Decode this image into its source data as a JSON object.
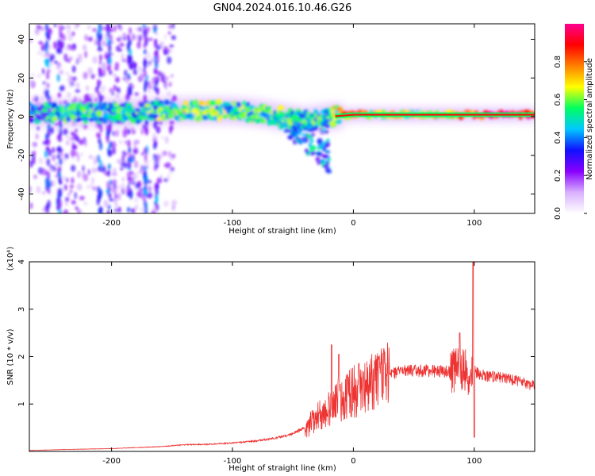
{
  "title": "GN04.2024.016.10.46.G26",
  "chart_data": [
    {
      "type": "heatmap",
      "xlabel": "Height of straight line (km)",
      "ylabel": "Frequency (Hz)",
      "xlim": [
        -268,
        150
      ],
      "ylim": [
        -50,
        48
      ],
      "x_ticks": [
        -200,
        -100,
        0,
        100
      ],
      "y_ticks": [
        -40,
        -20,
        0,
        20,
        40
      ],
      "x_tick_labels": [
        "-200",
        "-100",
        "0",
        "100"
      ],
      "y_tick_labels": [
        "-40",
        "-20",
        "0",
        "20",
        "40"
      ],
      "colorbar": {
        "label": "Normalized spectral amplitude",
        "range": [
          0,
          1
        ],
        "ticks": [
          0.0,
          0.2,
          0.4,
          0.6,
          0.8
        ],
        "tick_labels": [
          "0.0",
          "0.2",
          "0.4",
          "0.6",
          "0.8"
        ],
        "colormap": [
          "#ffffff",
          "#d8b0ff",
          "#8800ff",
          "#1010ff",
          "#00c8ff",
          "#00ff60",
          "#ffff00",
          "#ff8000",
          "#ff0000",
          "#ff0090"
        ]
      },
      "ridge": [
        {
          "x": -265,
          "freq": 2,
          "amp": 0.35
        },
        {
          "x": -240,
          "freq": 2,
          "amp": 0.5
        },
        {
          "x": -210,
          "freq": 2,
          "amp": 0.45
        },
        {
          "x": -180,
          "freq": 2,
          "amp": 0.45
        },
        {
          "x": -160,
          "freq": 3,
          "amp": 0.5
        },
        {
          "x": -140,
          "freq": 3,
          "amp": 0.55
        },
        {
          "x": -120,
          "freq": 3,
          "amp": 0.55
        },
        {
          "x": -100,
          "freq": 3,
          "amp": 0.5
        },
        {
          "x": -80,
          "freq": 2,
          "amp": 0.55
        },
        {
          "x": -60,
          "freq": 0,
          "amp": 0.5
        },
        {
          "x": -40,
          "freq": -2,
          "amp": 0.45
        },
        {
          "x": -20,
          "freq": 0,
          "amp": 0.5
        },
        {
          "x": 0,
          "freq": 1,
          "amp": 0.85
        },
        {
          "x": 20,
          "freq": 1,
          "amp": 0.6
        },
        {
          "x": 50,
          "freq": 1,
          "amp": 0.6
        },
        {
          "x": 80,
          "freq": 1,
          "amp": 0.7
        },
        {
          "x": 100,
          "freq": 1,
          "amp": 0.85
        },
        {
          "x": 148,
          "freq": 1,
          "amp": 0.9
        }
      ]
    },
    {
      "type": "line",
      "xlabel": "Height of straight line (km)",
      "ylabel": "SNR (10 * v/v)",
      "y_multiplier": "(x10⁴)",
      "xlim": [
        -268,
        150
      ],
      "ylim": [
        0,
        4
      ],
      "x_ticks": [
        -200,
        -100,
        0,
        100
      ],
      "y_ticks": [
        1,
        2,
        3,
        4
      ],
      "x_tick_labels": [
        "-200",
        "-100",
        "0",
        "100"
      ],
      "y_tick_labels": [
        "1",
        "2",
        "3",
        "4"
      ],
      "color": "#ee3333",
      "series": [
        {
          "x": [
            -268,
            -240,
            -200,
            -160,
            -140,
            -120,
            -100,
            -80,
            -60,
            -50,
            -40,
            -30,
            -20,
            -15,
            -10,
            0,
            10,
            20,
            30,
            40,
            60,
            80,
            90,
            95,
            100,
            105,
            120,
            140,
            150
          ],
          "values": [
            0.02,
            0.04,
            0.06,
            0.1,
            0.14,
            0.15,
            0.18,
            0.22,
            0.3,
            0.38,
            0.5,
            0.7,
            0.9,
            1.1,
            1.15,
            1.25,
            1.35,
            1.5,
            1.62,
            1.7,
            1.7,
            1.68,
            1.75,
            1.6,
            1.7,
            1.6,
            1.58,
            1.45,
            1.38
          ],
          "spikes": [
            {
              "x": -18,
              "value": 2.25
            },
            {
              "x": -12,
              "value": 2.05
            },
            {
              "x": 88,
              "value": 2.5
            },
            {
              "x": 99,
              "value": 4.0
            },
            {
              "x": 100,
              "value": 0.3
            }
          ]
        }
      ]
    }
  ]
}
